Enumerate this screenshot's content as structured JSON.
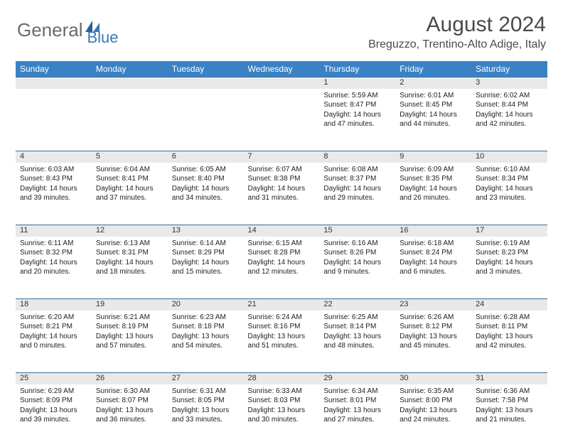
{
  "logo": {
    "text1": "General",
    "text2": "Blue"
  },
  "title": "August 2024",
  "location": "Breguzzo, Trentino-Alto Adige, Italy",
  "colors": {
    "header_bg": "#3a82c4",
    "header_text": "#ffffff",
    "daynum_bg": "#e9e9e9",
    "row_border": "#3a6a9a",
    "logo_gray": "#6a6a6a",
    "logo_blue": "#3a78b8"
  },
  "dayNames": [
    "Sunday",
    "Monday",
    "Tuesday",
    "Wednesday",
    "Thursday",
    "Friday",
    "Saturday"
  ],
  "weeks": [
    [
      null,
      null,
      null,
      null,
      {
        "n": "1",
        "sr": "5:59 AM",
        "ss": "8:47 PM",
        "dh": "14",
        "dm": "47"
      },
      {
        "n": "2",
        "sr": "6:01 AM",
        "ss": "8:45 PM",
        "dh": "14",
        "dm": "44"
      },
      {
        "n": "3",
        "sr": "6:02 AM",
        "ss": "8:44 PM",
        "dh": "14",
        "dm": "42"
      }
    ],
    [
      {
        "n": "4",
        "sr": "6:03 AM",
        "ss": "8:43 PM",
        "dh": "14",
        "dm": "39"
      },
      {
        "n": "5",
        "sr": "6:04 AM",
        "ss": "8:41 PM",
        "dh": "14",
        "dm": "37"
      },
      {
        "n": "6",
        "sr": "6:05 AM",
        "ss": "8:40 PM",
        "dh": "14",
        "dm": "34"
      },
      {
        "n": "7",
        "sr": "6:07 AM",
        "ss": "8:38 PM",
        "dh": "14",
        "dm": "31"
      },
      {
        "n": "8",
        "sr": "6:08 AM",
        "ss": "8:37 PM",
        "dh": "14",
        "dm": "29"
      },
      {
        "n": "9",
        "sr": "6:09 AM",
        "ss": "8:35 PM",
        "dh": "14",
        "dm": "26"
      },
      {
        "n": "10",
        "sr": "6:10 AM",
        "ss": "8:34 PM",
        "dh": "14",
        "dm": "23"
      }
    ],
    [
      {
        "n": "11",
        "sr": "6:11 AM",
        "ss": "8:32 PM",
        "dh": "14",
        "dm": "20"
      },
      {
        "n": "12",
        "sr": "6:13 AM",
        "ss": "8:31 PM",
        "dh": "14",
        "dm": "18"
      },
      {
        "n": "13",
        "sr": "6:14 AM",
        "ss": "8:29 PM",
        "dh": "14",
        "dm": "15"
      },
      {
        "n": "14",
        "sr": "6:15 AM",
        "ss": "8:28 PM",
        "dh": "14",
        "dm": "12"
      },
      {
        "n": "15",
        "sr": "6:16 AM",
        "ss": "8:26 PM",
        "dh": "14",
        "dm": "9"
      },
      {
        "n": "16",
        "sr": "6:18 AM",
        "ss": "8:24 PM",
        "dh": "14",
        "dm": "6"
      },
      {
        "n": "17",
        "sr": "6:19 AM",
        "ss": "8:23 PM",
        "dh": "14",
        "dm": "3"
      }
    ],
    [
      {
        "n": "18",
        "sr": "6:20 AM",
        "ss": "8:21 PM",
        "dh": "14",
        "dm": "0"
      },
      {
        "n": "19",
        "sr": "6:21 AM",
        "ss": "8:19 PM",
        "dh": "13",
        "dm": "57"
      },
      {
        "n": "20",
        "sr": "6:23 AM",
        "ss": "8:18 PM",
        "dh": "13",
        "dm": "54"
      },
      {
        "n": "21",
        "sr": "6:24 AM",
        "ss": "8:16 PM",
        "dh": "13",
        "dm": "51"
      },
      {
        "n": "22",
        "sr": "6:25 AM",
        "ss": "8:14 PM",
        "dh": "13",
        "dm": "48"
      },
      {
        "n": "23",
        "sr": "6:26 AM",
        "ss": "8:12 PM",
        "dh": "13",
        "dm": "45"
      },
      {
        "n": "24",
        "sr": "6:28 AM",
        "ss": "8:11 PM",
        "dh": "13",
        "dm": "42"
      }
    ],
    [
      {
        "n": "25",
        "sr": "6:29 AM",
        "ss": "8:09 PM",
        "dh": "13",
        "dm": "39"
      },
      {
        "n": "26",
        "sr": "6:30 AM",
        "ss": "8:07 PM",
        "dh": "13",
        "dm": "36"
      },
      {
        "n": "27",
        "sr": "6:31 AM",
        "ss": "8:05 PM",
        "dh": "13",
        "dm": "33"
      },
      {
        "n": "28",
        "sr": "6:33 AM",
        "ss": "8:03 PM",
        "dh": "13",
        "dm": "30"
      },
      {
        "n": "29",
        "sr": "6:34 AM",
        "ss": "8:01 PM",
        "dh": "13",
        "dm": "27"
      },
      {
        "n": "30",
        "sr": "6:35 AM",
        "ss": "8:00 PM",
        "dh": "13",
        "dm": "24"
      },
      {
        "n": "31",
        "sr": "6:36 AM",
        "ss": "7:58 PM",
        "dh": "13",
        "dm": "21"
      }
    ]
  ],
  "labels": {
    "sunrise": "Sunrise:",
    "sunset": "Sunset:",
    "daylight_prefix": "Daylight:",
    "hours": "hours",
    "and": "and",
    "minutes": "minutes."
  }
}
